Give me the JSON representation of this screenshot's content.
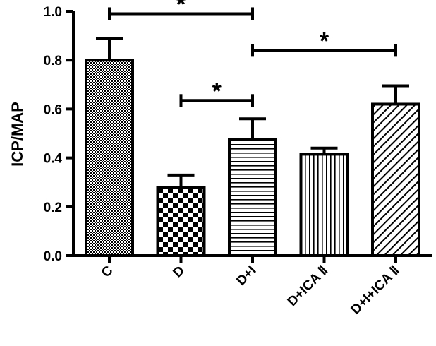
{
  "chart_data": {
    "type": "bar",
    "title": "",
    "xlabel": "",
    "ylabel": "ICP/MAP",
    "ylim": [
      0,
      1.0
    ],
    "yticks": [
      "0.0",
      "0.2",
      "0.4",
      "0.6",
      "0.8",
      "1.0"
    ],
    "grid": false,
    "categories": [
      "C",
      "D",
      "D+I",
      "D+ICA Ⅱ",
      "D+I+ICA Ⅱ"
    ],
    "values": [
      0.8,
      0.28,
      0.475,
      0.415,
      0.62
    ],
    "error": [
      0.09,
      0.05,
      0.085,
      0.025,
      0.075
    ],
    "patterns": [
      "dots",
      "checker",
      "horizontal-lines",
      "vertical-lines",
      "diagonal-lines"
    ],
    "significance": [
      {
        "from": 0,
        "to": 2,
        "y": 0.99,
        "label": "*"
      },
      {
        "from": 1,
        "to": 2,
        "y": 0.635,
        "label": "*"
      },
      {
        "from": 2,
        "to": 4,
        "y": 0.84,
        "label": "*"
      }
    ]
  }
}
